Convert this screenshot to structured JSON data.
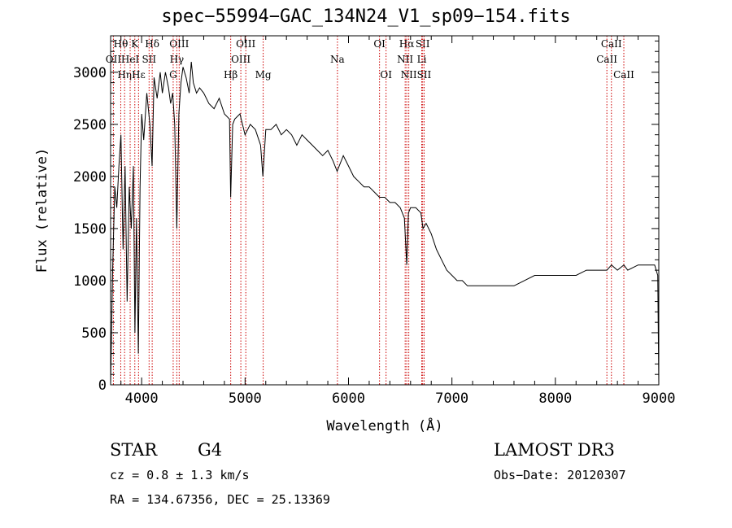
{
  "chart_data": {
    "type": "line",
    "title": "spec−55994−GAC_134N24_V1_sp09−154.fits",
    "xlabel": "Wavelength (Å)",
    "ylabel": "Flux (relative)",
    "xlim": [
      3700,
      9000
    ],
    "ylim": [
      0,
      3350
    ],
    "xticks": [
      4000,
      5000,
      6000,
      7000,
      8000,
      9000
    ],
    "yticks": [
      0,
      500,
      1000,
      1500,
      2000,
      2500,
      3000
    ],
    "series": [
      {
        "name": "spectrum",
        "x": [
          3700,
          3720,
          3740,
          3760,
          3780,
          3800,
          3820,
          3840,
          3860,
          3880,
          3900,
          3920,
          3935,
          3950,
          3968,
          3985,
          4000,
          4020,
          4050,
          4080,
          4101,
          4120,
          4150,
          4180,
          4200,
          4230,
          4260,
          4280,
          4300,
          4320,
          4340,
          4360,
          4380,
          4400,
          4430,
          4460,
          4480,
          4500,
          4530,
          4560,
          4600,
          4650,
          4700,
          4750,
          4800,
          4850,
          4861,
          4880,
          4900,
          4950,
          5000,
          5050,
          5100,
          5150,
          5172,
          5200,
          5250,
          5300,
          5350,
          5400,
          5450,
          5500,
          5550,
          5600,
          5650,
          5700,
          5750,
          5800,
          5850,
          5890,
          5950,
          6000,
          6050,
          6100,
          6150,
          6200,
          6250,
          6300,
          6350,
          6400,
          6450,
          6500,
          6540,
          6563,
          6580,
          6600,
          6650,
          6700,
          6720,
          6750,
          6800,
          6850,
          6900,
          6950,
          7000,
          7050,
          7100,
          7150,
          7200,
          7300,
          7400,
          7500,
          7600,
          7700,
          7800,
          7900,
          8000,
          8100,
          8200,
          8300,
          8400,
          8498,
          8542,
          8600,
          8662,
          8700,
          8800,
          8900,
          8960,
          8990,
          9000
        ],
        "y": [
          0,
          1100,
          1900,
          1700,
          2100,
          2400,
          1300,
          2100,
          800,
          1900,
          1500,
          2100,
          500,
          1600,
          300,
          1900,
          2600,
          2350,
          2800,
          2500,
          2100,
          2950,
          2750,
          3000,
          2800,
          3000,
          2850,
          2700,
          2800,
          2500,
          1500,
          2600,
          2900,
          3050,
          2950,
          2800,
          3100,
          2900,
          2800,
          2850,
          2800,
          2700,
          2650,
          2750,
          2600,
          2550,
          1800,
          2500,
          2550,
          2600,
          2400,
          2500,
          2450,
          2300,
          2000,
          2450,
          2450,
          2500,
          2400,
          2450,
          2400,
          2300,
          2400,
          2350,
          2300,
          2250,
          2200,
          2250,
          2150,
          2050,
          2200,
          2100,
          2000,
          1950,
          1900,
          1900,
          1850,
          1800,
          1800,
          1750,
          1750,
          1700,
          1600,
          1150,
          1650,
          1700,
          1700,
          1650,
          1500,
          1550,
          1450,
          1300,
          1200,
          1100,
          1050,
          1000,
          1000,
          950,
          950,
          950,
          950,
          950,
          950,
          1000,
          1050,
          1050,
          1050,
          1050,
          1050,
          1100,
          1100,
          1100,
          1150,
          1100,
          1150,
          1100,
          1150,
          1150,
          1150,
          1050,
          0
        ]
      }
    ],
    "lines": [
      {
        "name": "Hθ",
        "x": 3798,
        "row": 1
      },
      {
        "name": "OII",
        "x": 3727,
        "row": 2
      },
      {
        "name": "Hη",
        "x": 3835,
        "row": 3
      },
      {
        "name": "K",
        "x": 3934,
        "row": 1
      },
      {
        "name": "HeI",
        "x": 3889,
        "row": 2
      },
      {
        "name": "Hε",
        "x": 3970,
        "row": 3
      },
      {
        "name": "SII",
        "x": 4072,
        "row": 2
      },
      {
        "name": "Hδ",
        "x": 4102,
        "row": 1
      },
      {
        "name": "OIII",
        "x": 4363,
        "row": 1
      },
      {
        "name": "Hγ",
        "x": 4340,
        "row": 2
      },
      {
        "name": "G",
        "x": 4305,
        "row": 3
      },
      {
        "name": "Hβ",
        "x": 4861,
        "row": 3
      },
      {
        "name": "OIII",
        "x": 5007,
        "row": 1
      },
      {
        "name": "OIII",
        "x": 4959,
        "row": 2
      },
      {
        "name": "Mg",
        "x": 5175,
        "row": 3
      },
      {
        "name": "Na",
        "x": 5893,
        "row": 2
      },
      {
        "name": "OI",
        "x": 6300,
        "row": 1
      },
      {
        "name": "OI",
        "x": 6363,
        "row": 3
      },
      {
        "name": "Hα",
        "x": 6563,
        "row": 1
      },
      {
        "name": "NII",
        "x": 6548,
        "row": 2
      },
      {
        "name": "NII",
        "x": 6583,
        "row": 3
      },
      {
        "name": "SII",
        "x": 6717,
        "row": 1
      },
      {
        "name": "Li",
        "x": 6708,
        "row": 2
      },
      {
        "name": "SII",
        "x": 6731,
        "row": 3
      },
      {
        "name": "CaII",
        "x": 8542,
        "row": 1
      },
      {
        "name": "CaII",
        "x": 8498,
        "row": 2
      },
      {
        "name": "CaII",
        "x": 8662,
        "row": 3
      }
    ]
  },
  "info": {
    "object_class": "STAR",
    "subclass": "G4",
    "survey": "LAMOST DR3",
    "cz": "cz = 0.8 ± 1.3 km/s",
    "obs_date": "Obs−Date: 20120307",
    "coords": "RA = 134.67356, DEC =  25.13369"
  },
  "colors": {
    "line_marker": "#cc0000",
    "axes": "#000000",
    "background": "#ffffff"
  }
}
